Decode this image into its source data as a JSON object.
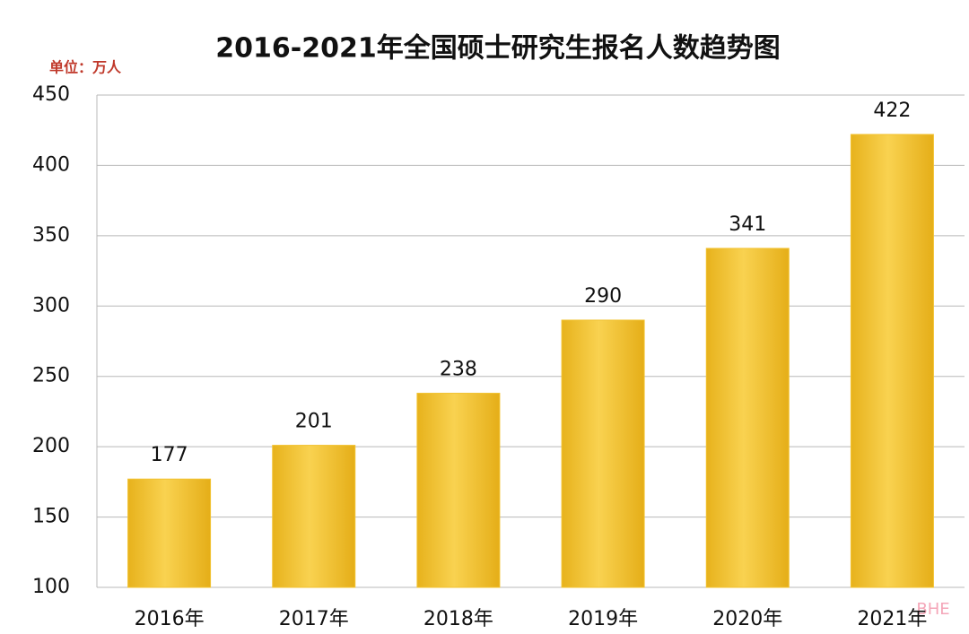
{
  "chart_data": {
    "type": "bar",
    "title": "2016-2021年全国硕士研究生报名人数趋势图",
    "unit_label": "单位：万人",
    "categories": [
      "2016年",
      "2017年",
      "2018年",
      "2019年",
      "2020年",
      "2021年"
    ],
    "values": [
      177,
      201,
      238,
      290,
      341,
      422
    ],
    "color": "#f2c230",
    "ylim": [
      100,
      450
    ],
    "yticks": [
      100,
      150,
      200,
      250,
      300,
      350,
      400,
      450
    ],
    "grid": true,
    "watermark": "BHE"
  }
}
